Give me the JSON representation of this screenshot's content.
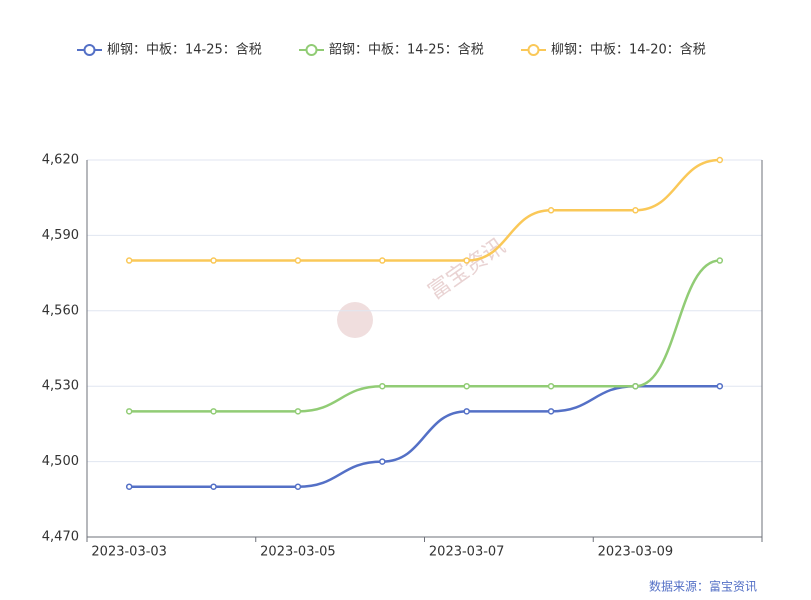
{
  "chart_data": {
    "type": "line",
    "categories": [
      "2023-03-03",
      null,
      "2023-03-05",
      null,
      "2023-03-07",
      null,
      "2023-03-09",
      null
    ],
    "series": [
      {
        "name": "柳钢：中板：14-25：含税",
        "color": "#5470c6",
        "values": [
          4490,
          4490,
          4490,
          4500,
          4520,
          4520,
          4530,
          4530
        ]
      },
      {
        "name": "韶钢：中板：14-25：含税",
        "color": "#91cc75",
        "values": [
          4520,
          4520,
          4520,
          4530,
          4530,
          4530,
          4530,
          4580
        ]
      },
      {
        "name": "柳钢：中板：14-20：含税",
        "color": "#fac858",
        "values": [
          4580,
          4580,
          4580,
          4580,
          4580,
          4600,
          4600,
          4620
        ]
      }
    ],
    "ylim": [
      4470,
      4620
    ],
    "yticks": [
      {
        "value": 4470,
        "label": "4,470"
      },
      {
        "value": 4500,
        "label": "4,500"
      },
      {
        "value": 4530,
        "label": "4,530"
      },
      {
        "value": 4560,
        "label": "4,560"
      },
      {
        "value": 4590,
        "label": "4,590"
      },
      {
        "value": 4620,
        "label": "4,620"
      }
    ],
    "grid": true,
    "legend_position": "top",
    "watermark": "富宝资讯",
    "source": "数据来源：富宝资讯"
  }
}
